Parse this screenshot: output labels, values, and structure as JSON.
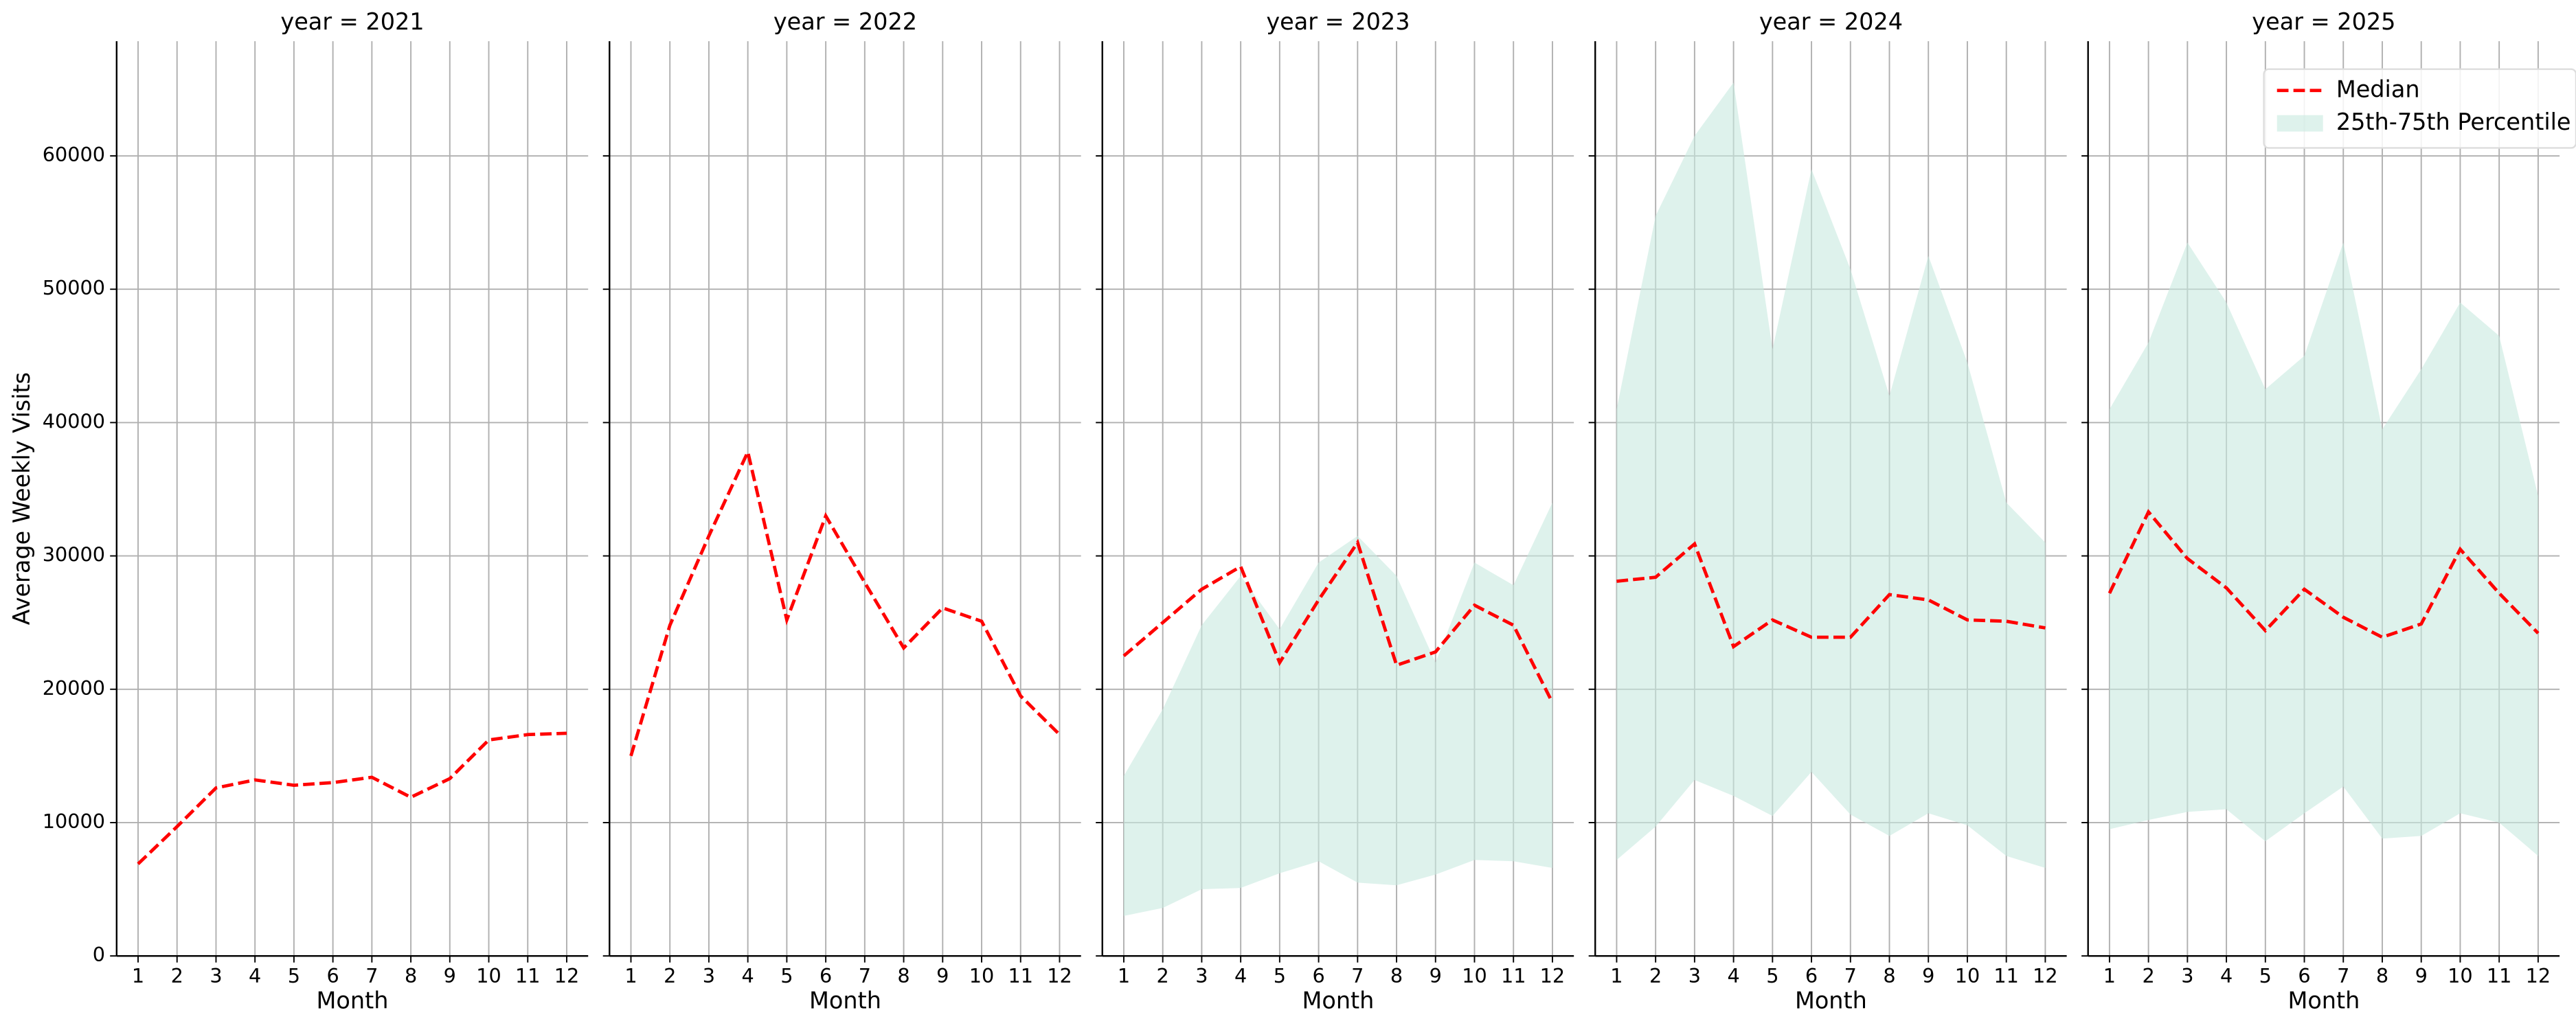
{
  "chart_data": [
    {
      "type": "line",
      "title": "year = 2021",
      "x_label": "Month",
      "y_label": "Average Weekly Visits",
      "x": [
        1,
        2,
        3,
        4,
        5,
        6,
        7,
        8,
        9,
        10,
        11,
        12
      ],
      "xlim": [
        0.45,
        12.55
      ],
      "xticks": [
        1,
        2,
        3,
        4,
        5,
        6,
        7,
        8,
        9,
        10,
        11,
        12
      ],
      "ylim": [
        0,
        68600
      ],
      "yticks": [
        0,
        10000,
        20000,
        30000,
        40000,
        50000,
        60000
      ],
      "grid": true,
      "series": [
        {
          "name": "Median",
          "color": "#ff0000",
          "dash": true,
          "values": [
            6900,
            9700,
            12600,
            13200,
            12800,
            13000,
            13400,
            11900,
            13300,
            16200,
            16600,
            16700
          ]
        }
      ]
    },
    {
      "type": "line",
      "title": "year = 2022",
      "x_label": "Month",
      "x": [
        1,
        2,
        3,
        4,
        5,
        6,
        7,
        8,
        9,
        10,
        11,
        12
      ],
      "xlim": [
        0.45,
        12.55
      ],
      "xticks": [
        1,
        2,
        3,
        4,
        5,
        6,
        7,
        8,
        9,
        10,
        11,
        12
      ],
      "ylim": [
        0,
        68600
      ],
      "yticks": [
        0,
        10000,
        20000,
        30000,
        40000,
        50000,
        60000
      ],
      "grid": true,
      "series": [
        {
          "name": "Median",
          "color": "#ff0000",
          "dash": true,
          "values": [
            15000,
            24800,
            31500,
            37800,
            25200,
            33000,
            28000,
            23100,
            26100,
            25100,
            19500,
            16600
          ]
        }
      ]
    },
    {
      "type": "line",
      "title": "year = 2023",
      "x_label": "Month",
      "x": [
        1,
        2,
        3,
        4,
        5,
        6,
        7,
        8,
        9,
        10,
        11,
        12
      ],
      "xlim": [
        0.45,
        12.55
      ],
      "xticks": [
        1,
        2,
        3,
        4,
        5,
        6,
        7,
        8,
        9,
        10,
        11,
        12
      ],
      "ylim": [
        0,
        68600
      ],
      "yticks": [
        0,
        10000,
        20000,
        30000,
        40000,
        50000,
        60000
      ],
      "grid": true,
      "series": [
        {
          "name": "25th-75th Percentile",
          "type": "band",
          "color": "#c8e9df",
          "lower": [
            3000,
            3600,
            5000,
            5100,
            6200,
            7100,
            5500,
            5300,
            6100,
            7200,
            7100,
            6600
          ],
          "upper": [
            13500,
            18500,
            24800,
            28500,
            24500,
            29500,
            31500,
            28500,
            22000,
            29500,
            27800,
            34000
          ]
        },
        {
          "name": "Median",
          "color": "#ff0000",
          "dash": true,
          "values": [
            22500,
            25000,
            27500,
            29200,
            22000,
            26700,
            31000,
            21800,
            22800,
            26300,
            24800,
            19000
          ]
        }
      ]
    },
    {
      "type": "line",
      "title": "year = 2024",
      "x_label": "Month",
      "x": [
        1,
        2,
        3,
        4,
        5,
        6,
        7,
        8,
        9,
        10,
        11,
        12
      ],
      "xlim": [
        0.45,
        12.55
      ],
      "xticks": [
        1,
        2,
        3,
        4,
        5,
        6,
        7,
        8,
        9,
        10,
        11,
        12
      ],
      "ylim": [
        0,
        68600
      ],
      "yticks": [
        0,
        10000,
        20000,
        30000,
        40000,
        50000,
        60000
      ],
      "grid": true,
      "series": [
        {
          "name": "25th-75th Percentile",
          "type": "band",
          "color": "#c8e9df",
          "lower": [
            7200,
            9700,
            13200,
            12000,
            10500,
            13800,
            10600,
            9000,
            10700,
            9800,
            7500,
            6600
          ],
          "upper": [
            41000,
            55500,
            61500,
            65500,
            45500,
            59000,
            51500,
            42000,
            52500,
            44500,
            34000,
            31000
          ]
        },
        {
          "name": "Median",
          "color": "#ff0000",
          "dash": true,
          "values": [
            28100,
            28400,
            30900,
            23200,
            25200,
            23900,
            23900,
            27100,
            26700,
            25200,
            25100,
            24600
          ]
        }
      ]
    },
    {
      "type": "line",
      "title": "year = 2025",
      "x_label": "Month",
      "x": [
        1,
        2,
        3,
        4,
        5,
        6,
        7,
        8,
        9,
        10,
        11,
        12
      ],
      "xlim": [
        0.45,
        12.55
      ],
      "xticks": [
        1,
        2,
        3,
        4,
        5,
        6,
        7,
        8,
        9,
        10,
        11,
        12
      ],
      "ylim": [
        0,
        68600
      ],
      "yticks": [
        0,
        10000,
        20000,
        30000,
        40000,
        50000,
        60000
      ],
      "grid": true,
      "legend": "upper right",
      "series": [
        {
          "name": "25th-75th Percentile",
          "type": "band",
          "color": "#c8e9df",
          "lower": [
            9500,
            10200,
            10800,
            11000,
            8600,
            10700,
            12700,
            8800,
            9000,
            10700,
            10000,
            7500
          ],
          "upper": [
            41000,
            46000,
            53500,
            49000,
            42500,
            45000,
            53500,
            39500,
            44000,
            49000,
            46500,
            34500
          ]
        },
        {
          "name": "Median",
          "color": "#ff0000",
          "dash": true,
          "values": [
            27200,
            33300,
            29800,
            27600,
            24400,
            27500,
            25400,
            23900,
            24900,
            30500,
            27200,
            24200
          ]
        }
      ]
    }
  ]
}
